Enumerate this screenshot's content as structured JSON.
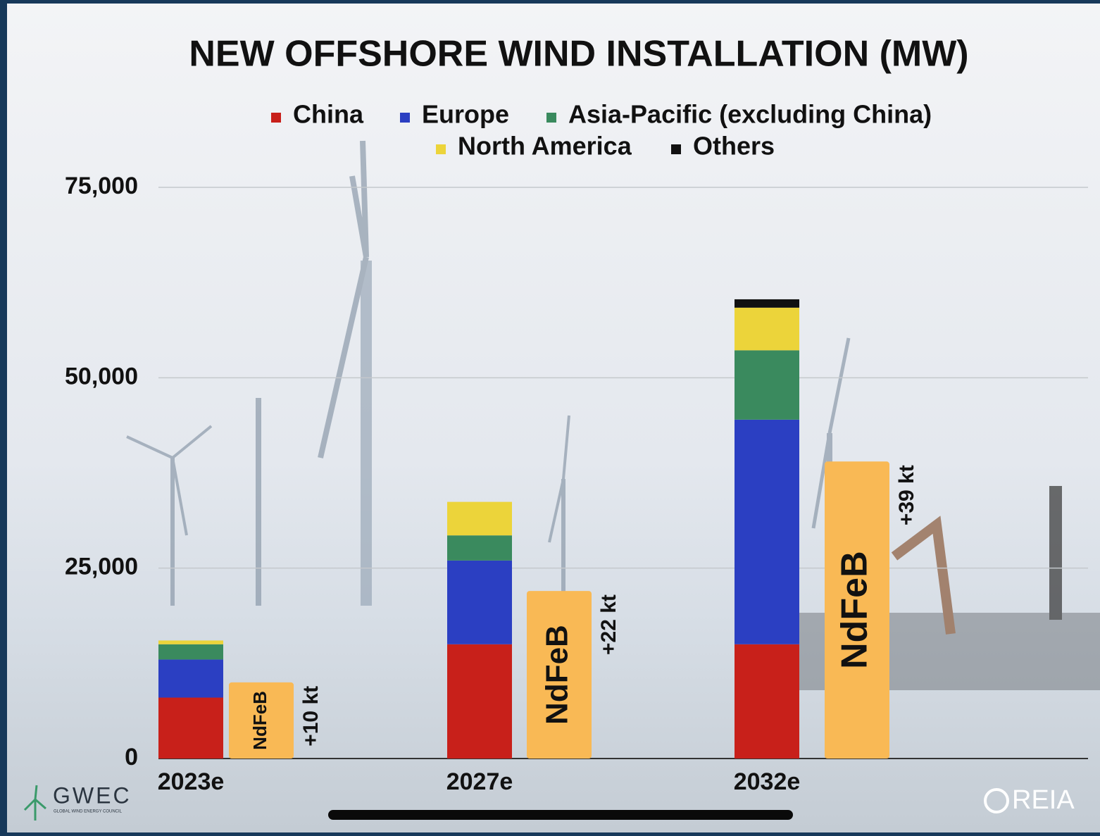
{
  "chart_data": {
    "type": "stacked-bar",
    "title": "NEW OFFSHORE WIND INSTALLATION (MW)",
    "categories": [
      "2023e",
      "2027e",
      "2032e"
    ],
    "series": [
      {
        "name": "China",
        "color": "#c8201a",
        "values": [
          8000,
          15000,
          15000
        ]
      },
      {
        "name": "Europe",
        "color": "#2b3fc2",
        "values": [
          5000,
          11000,
          29500
        ]
      },
      {
        "name": "Asia-Pacific (excluding China)",
        "color": "#3a8a5e",
        "values": [
          2000,
          3300,
          9100
        ]
      },
      {
        "name": "North America",
        "color": "#ecd43a",
        "values": [
          500,
          4400,
          5600
        ]
      },
      {
        "name": "Others",
        "color": "#111111",
        "values": [
          0,
          0,
          1100
        ]
      }
    ],
    "ylim": [
      0,
      75000
    ],
    "yticks": [
      0,
      {
        "value": 25000,
        "label": "25,000"
      },
      {
        "value": 50000,
        "label": "50,000"
      },
      {
        "value": 75000,
        "label": "75,000"
      }
    ],
    "grid": true,
    "ndfeb": {
      "name": "NdFeB",
      "color": "#f9b955",
      "axis": "y2",
      "values": [
        10,
        22,
        39
      ],
      "value_labels": [
        "+10 kt",
        "+22 kt",
        "+39 kt"
      ]
    },
    "y2lim": [
      0,
      75
    ],
    "logos": [
      "GWEC",
      "GLOBAL WIND ENERGY COUNCIL",
      "REIA"
    ]
  }
}
